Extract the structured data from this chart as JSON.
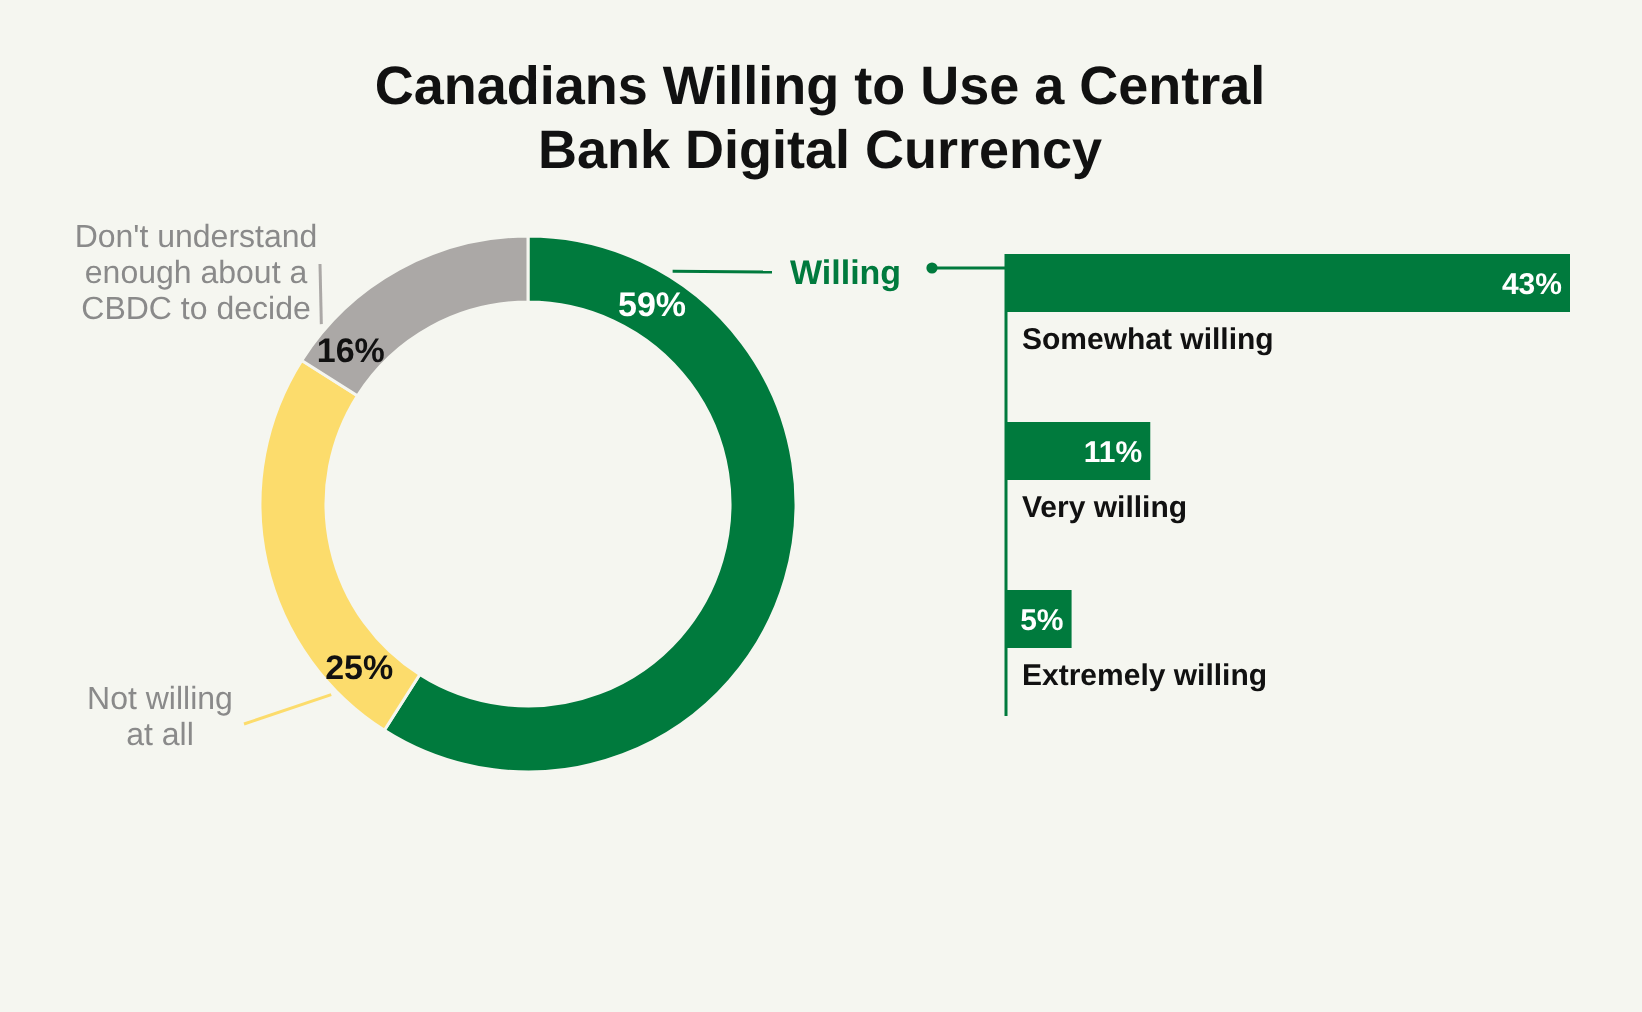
{
  "chart_data": [
    {
      "type": "donut",
      "title": "Canadians Willing to Use a Central Bank Digital Currency",
      "categories": [
        "Willing",
        "Not willing at all",
        "Don't understand enough about a CBDC to decide"
      ],
      "values": [
        59,
        25,
        16
      ],
      "colors": [
        "#007a3d",
        "#fcdc6c",
        "#aba8a6"
      ],
      "value_labels": [
        "59%",
        "25%",
        "16%"
      ]
    },
    {
      "type": "bar",
      "orientation": "horizontal",
      "categories": [
        "Somewhat willing",
        "Very willing",
        "Extremely willing"
      ],
      "values": [
        43,
        11,
        5
      ],
      "color": "#007a3d",
      "value_labels": [
        "43%",
        "11%",
        "5%"
      ]
    }
  ]
}
